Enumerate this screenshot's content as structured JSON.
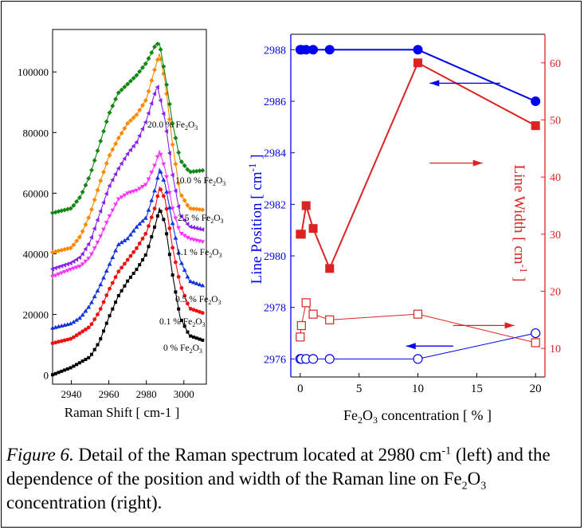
{
  "caption": {
    "label": "Figure 6.",
    "part1": " Detail of the Raman spectrum located at 2980 cm",
    "sup": "-1",
    "part2": " (left) and the dependence of the position and width of the Raman line on ",
    "chem_a": "Fe",
    "sub1": "2",
    "chem_b": "O",
    "sub2": "3",
    "part3": " concentration (right)."
  },
  "chart_data": [
    {
      "type": "line",
      "xlabel": "Raman Shift [ cm-1 ]",
      "xlim": [
        2930,
        3012
      ],
      "ylim": [
        -3000,
        114000
      ],
      "xticks": [
        2940,
        2960,
        2980,
        3000
      ],
      "yticks": [
        0,
        20000,
        40000,
        60000,
        80000,
        100000
      ],
      "series": [
        {
          "name": "0 % Fe2O3",
          "label_parts": [
            "0 % Fe",
            "2",
            "O",
            "3"
          ],
          "color": "#000000",
          "marker": "square",
          "x": [
            2930,
            2940,
            2950,
            2955,
            2960,
            2965,
            2970,
            2975,
            2980,
            2985,
            2987,
            2990,
            2994,
            2998,
            3003,
            3010
          ],
          "y": [
            100,
            2500,
            6000,
            11000,
            19000,
            26000,
            31000,
            35000,
            40000,
            50000,
            55000,
            50000,
            33000,
            19000,
            13000,
            11500
          ]
        },
        {
          "name": "0.1 % Fe2O3",
          "label_parts": [
            "0.1 % Fe",
            "2",
            "O",
            "3"
          ],
          "color": "#ee1111",
          "marker": "circle",
          "x": [
            2930,
            2940,
            2950,
            2955,
            2960,
            2965,
            2970,
            2975,
            2980,
            2985,
            2987,
            2990,
            2994,
            2998,
            3003,
            3010
          ],
          "y": [
            10500,
            12000,
            16000,
            21000,
            28000,
            34000,
            38000,
            42000,
            47000,
            56000,
            62000,
            58000,
            42000,
            30000,
            22000,
            20500
          ]
        },
        {
          "name": "0.5 % Fe2O3",
          "label_parts": [
            "0.5 % Fe",
            "2",
            "O",
            "3"
          ],
          "color": "#1133dd",
          "marker": "triangle-up",
          "x": [
            2930,
            2940,
            2945,
            2950,
            2955,
            2960,
            2965,
            2970,
            2975,
            2980,
            2985,
            2987,
            2990,
            2994,
            2998,
            3003,
            3010
          ],
          "y": [
            15500,
            17000,
            19000,
            23000,
            29000,
            36000,
            43000,
            45000,
            49000,
            52000,
            62000,
            68000,
            63000,
            50000,
            38000,
            31000,
            29500
          ]
        },
        {
          "name": "1.1 % Fe2O3",
          "label_parts": [
            "1.1 % Fe",
            "2",
            "O",
            "3"
          ],
          "color": "#ff33ff",
          "marker": "triangle-down",
          "x": [
            2930,
            2940,
            2945,
            2950,
            2955,
            2960,
            2965,
            2970,
            2975,
            2980,
            2985,
            2987,
            2990,
            2994,
            2998,
            3003,
            3010
          ],
          "y": [
            32500,
            35000,
            36000,
            39000,
            45000,
            52000,
            58000,
            60000,
            61000,
            63000,
            70000,
            74000,
            68000,
            55000,
            47000,
            45000,
            44000
          ]
        },
        {
          "name": "2.5 % Fe2O3",
          "label_parts": [
            "2.5 % Fe",
            "2",
            "O",
            "3"
          ],
          "color": "#8822ee",
          "marker": "triangle-left",
          "x": [
            2930,
            2940,
            2945,
            2950,
            2955,
            2960,
            2965,
            2970,
            2975,
            2980,
            2985,
            2986,
            2990,
            2994,
            2998,
            3003,
            3010
          ],
          "y": [
            35000,
            37000,
            39000,
            44000,
            53000,
            62000,
            68000,
            73000,
            77000,
            84000,
            94000,
            95000,
            84000,
            66000,
            53000,
            49000,
            48000
          ]
        },
        {
          "name": "10.0 % Fe2O3",
          "label_parts": [
            "10.0 % Fe",
            "2",
            "O",
            "3"
          ],
          "color": "#ff8800",
          "marker": "diamond",
          "x": [
            2930,
            2940,
            2945,
            2950,
            2955,
            2960,
            2965,
            2970,
            2975,
            2980,
            2985,
            2987,
            2990,
            2994,
            2998,
            3003,
            3010
          ],
          "y": [
            40500,
            42000,
            46000,
            53000,
            63000,
            72000,
            78000,
            83000,
            86000,
            91000,
            102000,
            106000,
            97000,
            76000,
            60000,
            55000,
            54500
          ]
        },
        {
          "name": "20.0 % Fe2O3",
          "label_parts": [
            "20.0 % Fe",
            "2",
            "O",
            "3"
          ],
          "color": "#118811",
          "marker": "diamond",
          "x": [
            2930,
            2940,
            2945,
            2950,
            2955,
            2960,
            2965,
            2970,
            2975,
            2980,
            2985,
            2987,
            2990,
            2994,
            2998,
            3003,
            3010
          ],
          "y": [
            53500,
            55000,
            59000,
            66000,
            76000,
            86000,
            93000,
            96000,
            99000,
            103000,
            109000,
            109500,
            99000,
            83000,
            71000,
            67000,
            67500
          ]
        }
      ]
    },
    {
      "type": "scatter",
      "xlabel_parts": [
        "Fe",
        "2",
        "O",
        "3",
        " concentration [ % ]"
      ],
      "ylabel_left_parts": [
        "Line Position [ cm",
        "-1",
        " ]"
      ],
      "ylabel_right_parts": [
        "Line Width [ cm",
        "-1",
        " ]"
      ],
      "xlim": [
        -0.8,
        20.8
      ],
      "xticks": [
        0,
        5,
        10,
        15,
        20
      ],
      "ylim_left": [
        2975.3,
        2988.6
      ],
      "yticks_left": [
        2976,
        2978,
        2980,
        2982,
        2984,
        2986,
        2988
      ],
      "ylim_right": [
        5,
        65
      ],
      "yticks_right": [
        10,
        20,
        30,
        40,
        50,
        60
      ],
      "left_color": "#0000ee",
      "right_color": "#dd2222",
      "series": [
        {
          "axis": "left",
          "marker": "circle-filled",
          "x": [
            0,
            0.1,
            0.5,
            1.1,
            2.5,
            10,
            20
          ],
          "y": [
            2988,
            2988,
            2988,
            2988,
            2988,
            2988,
            2986
          ]
        },
        {
          "axis": "left",
          "marker": "circle-open",
          "x": [
            0,
            0.1,
            0.5,
            1.1,
            2.5,
            10,
            20
          ],
          "y": [
            2976,
            2976,
            2976,
            2976,
            2976,
            2976,
            2977
          ]
        },
        {
          "axis": "right",
          "marker": "square-filled",
          "x": [
            0,
            0.1,
            0.5,
            1.1,
            2.5,
            10,
            20
          ],
          "y": [
            30,
            30,
            35,
            31,
            24,
            60,
            49
          ]
        },
        {
          "axis": "right",
          "marker": "square-open",
          "x": [
            0,
            0.1,
            0.5,
            1.1,
            2.5,
            10,
            20
          ],
          "y": [
            12,
            14,
            18,
            16,
            15,
            16,
            11
          ]
        }
      ],
      "arrows": [
        {
          "color": "blue",
          "from": [
            17,
            2986.7
          ],
          "to": [
            11,
            2986.7
          ],
          "axis": "left"
        },
        {
          "color": "red",
          "from": [
            11,
            2983.6
          ],
          "to": [
            15.5,
            2983.6
          ],
          "axis": "left"
        },
        {
          "color": "red",
          "from": [
            13,
            2977.3
          ],
          "to": [
            18.2,
            2977.3
          ],
          "axis": "left"
        },
        {
          "color": "blue",
          "from": [
            13,
            2976.5
          ],
          "to": [
            9,
            2976.5
          ],
          "axis": "left"
        }
      ]
    }
  ]
}
